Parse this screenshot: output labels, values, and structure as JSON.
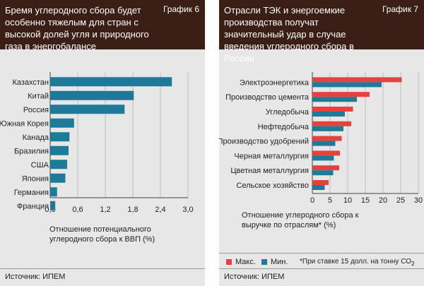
{
  "colors": {
    "header_bg": "#3b1e15",
    "panel_bg": "#e7e7e7",
    "blue": "#1d7a98",
    "red": "#e4413f"
  },
  "left": {
    "title": "Бремя углеродного сбора будет особенно тяжелым для стран с высокой долей угля и природного газа в энергобалансе",
    "label": "График 6",
    "axis_title": "Отношение потенциального углеродного сбора к ВВП (%)",
    "source": "Источник: ИПЕМ",
    "chart_data": {
      "type": "bar",
      "orientation": "horizontal",
      "categories": [
        "Казахстан",
        "Китай",
        "Россия",
        "Южная Корея",
        "Канада",
        "Бразилия",
        "США",
        "Япония",
        "Германия",
        "Франция"
      ],
      "values": [
        2.65,
        1.82,
        1.62,
        0.52,
        0.42,
        0.4,
        0.37,
        0.33,
        0.15,
        0.11
      ],
      "xlim": [
        0,
        3.0
      ],
      "xticks": [
        "0,0",
        "0,6",
        "1,2",
        "1,8",
        "2,4",
        "3,0"
      ],
      "xlabel": "Отношение потенциального углеродного сбора к ВВП (%)",
      "title": "Бремя углеродного сбора будет особенно тяжелым для стран с высокой долей угля и природного газа в энергобалансе",
      "grid": "vertical"
    }
  },
  "right": {
    "title": "Отрасли ТЭК и энергоемкие производства получат значительный удар в случае введения углеродного сбора в России",
    "label": "График 7",
    "axis_title": "Отношение углеродного сбора к выручке по отраслям* (%)",
    "legend_max": "Макс.",
    "legend_min": "Мин.",
    "note_text": "*При ставке 15 долл. на тонну СО",
    "note_sub": "2",
    "source": "Источник: ИПЕМ",
    "chart_data": {
      "type": "bar",
      "orientation": "horizontal",
      "categories": [
        "Электроэнергетика",
        "Производство цемента",
        "Угледобыча",
        "Нефтедобыча",
        "Производство удобрений",
        "Черная металлургия",
        "Цветная металлургия",
        "Сельское хозяйство"
      ],
      "series": [
        {
          "name": "Макс.",
          "values": [
            25.3,
            16.2,
            11.5,
            11.0,
            8.3,
            7.8,
            7.6,
            4.6
          ]
        },
        {
          "name": "Мин.",
          "values": [
            19.6,
            12.6,
            9.2,
            8.8,
            6.5,
            6.1,
            5.9,
            3.5
          ]
        }
      ],
      "xlim": [
        0,
        30
      ],
      "xticks": [
        "0",
        "5",
        "10",
        "15",
        "20",
        "25",
        "30"
      ],
      "xlabel": "Отношение углеродного сбора к выручке по отраслям* (%)",
      "title": "Отрасли ТЭК и энергоемкие производства получат значительный удар в случае введения углеродного сбора в России",
      "grid": "vertical",
      "legend": "bottom"
    }
  }
}
